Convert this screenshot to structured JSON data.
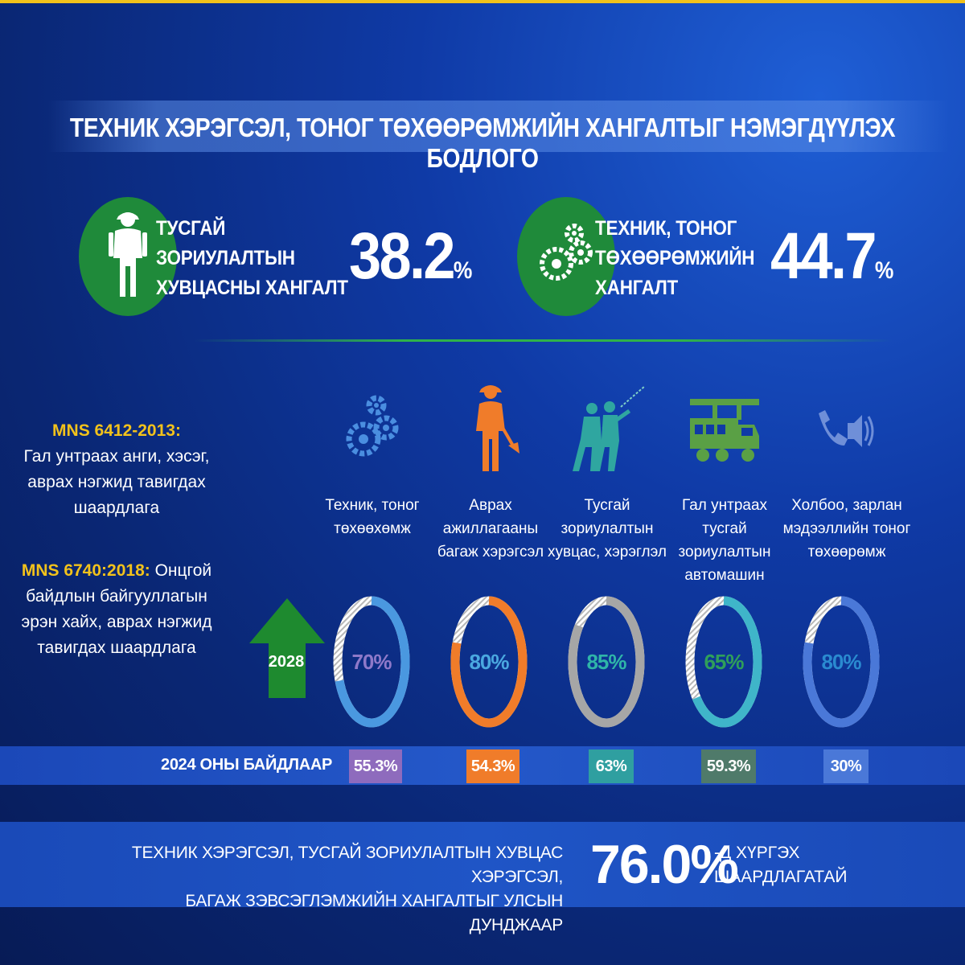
{
  "title": "ТЕХНИК ХЭРЭГСЭЛ, ТОНОГ ТӨХӨӨРӨМЖИЙН ХАНГАЛТЫГ НЭМЭГДҮҮЛЭХ БОДЛОГО",
  "kpis": [
    {
      "label_lines": [
        "ТУСГАЙ",
        "ЗОРИУЛАЛТЫН",
        "ХУВЦАСНЫ ХАНГАЛТ"
      ],
      "value": "38.2",
      "unit": "%",
      "icon": "firefighter-icon"
    },
    {
      "label_lines": [
        "ТЕХНИК, ТОНОГ",
        "ТӨХӨӨРӨМЖИЙН",
        "ХАНГАЛТ"
      ],
      "value": "44.7",
      "unit": "%",
      "icon": "gears-icon"
    }
  ],
  "standards": [
    {
      "code": "MNS 6412-2013:",
      "text_lines": [
        "Гал унтраах анги, хэсэг,",
        "аврах нэгжид тавигдах",
        "шаардлага"
      ]
    },
    {
      "code": "MNS 6740:2018:",
      "text_inline": " Онцгой",
      "text_lines": [
        "байдлын байгууллагын",
        "эрэн хайх, аврах нэгжид",
        "тавигдах шаардлага"
      ]
    }
  ],
  "target_year": "2028",
  "categories": [
    {
      "label_lines": [
        "Техник, тоног",
        "төхөөхөмж"
      ],
      "icon": "gears-icon",
      "target_label": "70%",
      "target": 70,
      "current_label": "55.3%",
      "current": 55.3,
      "ring_color": "#4a98e0",
      "text_color": "#8e79c9",
      "badge_color": "#8e6bbd",
      "icon_color": "#4a8ee0"
    },
    {
      "label_lines": [
        "Аврах",
        "ажиллагааны",
        "багаж хэрэгсэл"
      ],
      "icon": "rescuer-axe-icon",
      "target_label": "80%",
      "target": 80,
      "current_label": "54.3%",
      "current": 54.3,
      "ring_color": "#f07c2a",
      "text_color": "#4aa8e0",
      "badge_color": "#f07c2a",
      "icon_color": "#f07c2a"
    },
    {
      "label_lines": [
        "Тусгай",
        "зориулалтын",
        "хувцас, хэрэглэл"
      ],
      "icon": "firefighters-hose-icon",
      "target_label": "85%",
      "target": 85,
      "current_label": "63%",
      "current": 63,
      "ring_color": "#a6a6a6",
      "text_color": "#2fb5a8",
      "badge_color": "#2f9fa0",
      "icon_color": "#2fa6a0"
    },
    {
      "label_lines": [
        "Гал унтраах тусгай",
        "зориулалтын",
        "автомашин"
      ],
      "icon": "fire-truck-icon",
      "target_label": "65%",
      "target": 65,
      "current_label": "59.3%",
      "current": 59.3,
      "ring_color": "#3fb5c9",
      "text_color": "#2f9f5a",
      "badge_color": "#4f7a6a",
      "icon_color": "#5aa045"
    },
    {
      "label_lines": [
        "Холбоо, зарлан",
        "мэдээллийн тоног",
        "төхөөрөмж"
      ],
      "icon": "phone-speaker-icon",
      "target_label": "80%",
      "target": 80,
      "current_label": "30%",
      "current": 30,
      "ring_color": "#4a78d8",
      "text_color": "#2a8ad0",
      "badge_color": "#4a78d8",
      "icon_color": "#6f8fd8"
    }
  ],
  "baseline_label": "2024 ОНЫ БАЙДЛААР",
  "bottom": {
    "left_lines": [
      "ТЕХНИК ХЭРЭГСЭЛ, ТУСГАЙ ЗОРИУЛАЛТЫН ХУВЦАС ХЭРЭГСЭЛ,",
      "БАГАЖ ЗЭВСЭГЛЭМЖИЙН ХАНГАЛТЫГ УЛСЫН ДУНДЖААР"
    ],
    "value": "76.0%",
    "right_lines": [
      "-Д ХҮРГЭХ",
      "ШААРДЛАГАТАЙ"
    ]
  },
  "colors": {
    "accent_yellow": "#f2c21b",
    "accent_green": "#1f8a3a",
    "arrow_green": "#1e8a2f"
  }
}
